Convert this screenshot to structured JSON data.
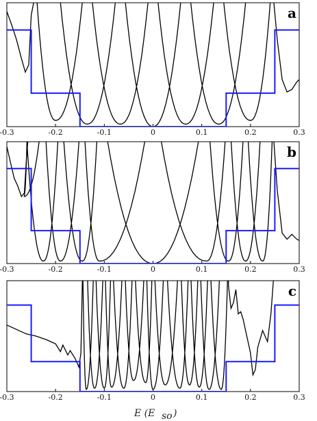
{
  "figure": {
    "xlabel": "E (E_so)",
    "xlabel_main": "E (E",
    "xlabel_sub": "so",
    "xlabel_close": ")"
  },
  "colors": {
    "step_line": "#1a1aff",
    "curve_line": "#000000",
    "axis": "#000000"
  },
  "chart_data": [
    {
      "type": "line",
      "panel_label": "a",
      "xlim": [
        -0.3,
        0.3
      ],
      "ylim": [
        0,
        1
      ],
      "x_ticks": [
        "-0.3",
        "-0.2",
        "-0.1",
        "0",
        "0.1",
        "0.2",
        "0.3"
      ],
      "step": {
        "x": [
          -0.3,
          -0.25,
          -0.25,
          -0.15,
          -0.15,
          0.15,
          0.15,
          0.25,
          0.25,
          0.3
        ],
        "y": [
          0.78,
          0.78,
          0.27,
          0.27,
          0.0,
          0.0,
          0.27,
          0.27,
          0.78,
          0.78
        ]
      },
      "minima_x": [
        -0.2,
        -0.135,
        -0.067,
        0.0,
        0.067,
        0.135,
        0.2
      ],
      "minima_y": [
        0.05,
        0.02,
        0.02,
        0.0,
        0.02,
        0.02,
        0.05
      ],
      "curve_points": [
        [
          -0.3,
          0.93
        ],
        [
          -0.29,
          0.82
        ],
        [
          -0.28,
          0.7
        ],
        [
          -0.27,
          0.55
        ],
        [
          -0.262,
          0.44
        ],
        [
          -0.255,
          0.5
        ],
        [
          -0.25,
          0.9
        ],
        [
          -0.245,
          1.0
        ]
      ],
      "tail_points": [
        [
          0.248,
          1.0
        ],
        [
          0.255,
          0.7
        ],
        [
          0.265,
          0.38
        ],
        [
          0.275,
          0.28
        ],
        [
          0.285,
          0.3
        ],
        [
          0.295,
          0.36
        ],
        [
          0.3,
          0.38
        ]
      ]
    },
    {
      "type": "line",
      "panel_label": "b",
      "xlim": [
        -0.3,
        0.3
      ],
      "ylim": [
        0,
        1
      ],
      "x_ticks": [
        "-0.3",
        "-0.2",
        "-0.1",
        "0",
        "0.1",
        "0.2",
        "0.3"
      ],
      "step": {
        "x": [
          -0.3,
          -0.25,
          -0.25,
          -0.15,
          -0.15,
          0.15,
          0.15,
          0.25,
          0.25,
          0.3
        ],
        "y": [
          0.78,
          0.78,
          0.27,
          0.27,
          0.0,
          0.0,
          0.27,
          0.27,
          0.78,
          0.78
        ]
      },
      "minima_x": [
        -0.265,
        -0.225,
        -0.19,
        -0.145,
        -0.11,
        0.0,
        0.11,
        0.155,
        0.19,
        0.225
      ],
      "minima_y": [
        0.55,
        0.02,
        0.02,
        0.02,
        0.02,
        0.0,
        0.02,
        0.02,
        0.02,
        0.02
      ],
      "curve_points": [
        [
          -0.3,
          0.96
        ],
        [
          -0.292,
          0.82
        ],
        [
          -0.285,
          0.7
        ],
        [
          -0.278,
          0.64
        ],
        [
          -0.27,
          0.55
        ],
        [
          -0.264,
          0.58
        ],
        [
          -0.26,
          0.85
        ],
        [
          -0.257,
          1.0
        ]
      ],
      "tail_points": [
        [
          0.248,
          1.0
        ],
        [
          0.255,
          0.6
        ],
        [
          0.265,
          0.25
        ],
        [
          0.275,
          0.2
        ],
        [
          0.285,
          0.24
        ],
        [
          0.295,
          0.2
        ],
        [
          0.3,
          0.19
        ]
      ]
    },
    {
      "type": "line",
      "panel_label": "c",
      "xlim": [
        -0.3,
        0.3
      ],
      "ylim": [
        0,
        1
      ],
      "x_ticks": [
        "-0.3",
        "-0.2",
        "-0.1",
        "0",
        "0.1",
        "0.2",
        "0.3"
      ],
      "step": {
        "x": [
          -0.3,
          -0.25,
          -0.25,
          -0.15,
          -0.15,
          0.15,
          0.15,
          0.25,
          0.25,
          0.3
        ],
        "y": [
          0.78,
          0.78,
          0.27,
          0.27,
          0.0,
          0.0,
          0.27,
          0.27,
          0.78,
          0.78
        ]
      },
      "minima_x": [
        -0.137,
        -0.12,
        -0.1,
        -0.085,
        -0.06,
        -0.04,
        -0.015,
        0.0,
        0.025,
        0.055,
        0.075,
        0.095,
        0.115,
        0.14
      ],
      "minima_y": [
        0.02,
        0.03,
        0.03,
        0.04,
        0.03,
        0.1,
        0.08,
        0.02,
        0.06,
        0.03,
        0.06,
        0.04,
        0.02,
        0.02
      ],
      "curve_points": [
        [
          -0.3,
          0.6
        ],
        [
          -0.28,
          0.56
        ],
        [
          -0.26,
          0.52
        ],
        [
          -0.24,
          0.5
        ],
        [
          -0.22,
          0.47
        ],
        [
          -0.2,
          0.43
        ],
        [
          -0.19,
          0.36
        ],
        [
          -0.185,
          0.42
        ],
        [
          -0.175,
          0.33
        ],
        [
          -0.17,
          0.37
        ],
        [
          -0.16,
          0.3
        ],
        [
          -0.152,
          0.22
        ],
        [
          -0.148,
          0.35
        ],
        [
          -0.145,
          1.0
        ]
      ],
      "tail_points": [
        [
          0.155,
          0.95
        ],
        [
          0.16,
          0.75
        ],
        [
          0.165,
          0.8
        ],
        [
          0.17,
          0.92
        ],
        [
          0.175,
          0.7
        ],
        [
          0.18,
          0.72
        ],
        [
          0.185,
          0.65
        ],
        [
          0.19,
          0.55
        ],
        [
          0.2,
          0.35
        ],
        [
          0.205,
          0.15
        ],
        [
          0.21,
          0.2
        ],
        [
          0.215,
          0.4
        ],
        [
          0.225,
          0.55
        ],
        [
          0.235,
          0.45
        ],
        [
          0.242,
          0.7
        ],
        [
          0.247,
          1.0
        ]
      ]
    }
  ]
}
